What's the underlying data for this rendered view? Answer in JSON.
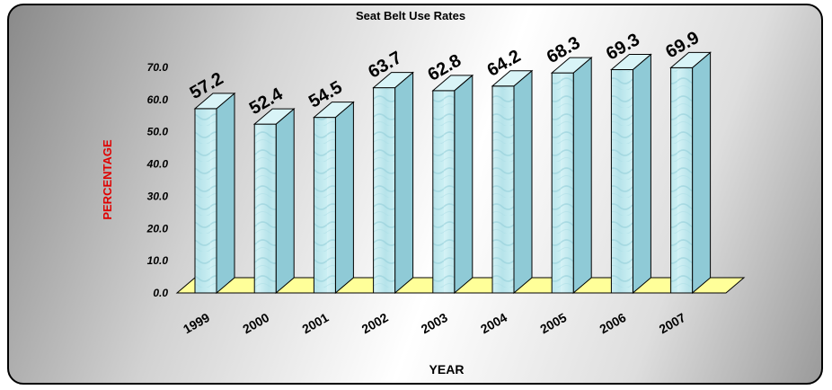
{
  "chart_data": {
    "type": "bar",
    "title": "Seat Belt Use Rates",
    "xlabel": "YEAR",
    "ylabel": "PERCENTAGE",
    "categories": [
      "1999",
      "2000",
      "2001",
      "2002",
      "2003",
      "2004",
      "2005",
      "2006",
      "2007"
    ],
    "values": [
      57.2,
      52.4,
      54.5,
      63.7,
      62.8,
      64.2,
      68.3,
      69.3,
      69.9
    ],
    "data_labels": [
      "57.2",
      "52.4",
      "54.5",
      "63.7",
      "62.8",
      "64.2",
      "68.3",
      "69.3",
      "69.9"
    ],
    "ylim": [
      0,
      70
    ],
    "yticks": [
      "0.0",
      "10.0",
      "20.0",
      "30.0",
      "40.0",
      "50.0",
      "60.0",
      "70.0"
    ],
    "grid": false,
    "legend": "none",
    "style": "3d-column",
    "colors": {
      "bar_front": "#bfe8ee",
      "bar_side": "#8fcad6",
      "bar_top": "#d9f4f7",
      "floor": "#ffff99",
      "ylabel": "#e00000",
      "text": "#000000"
    }
  }
}
